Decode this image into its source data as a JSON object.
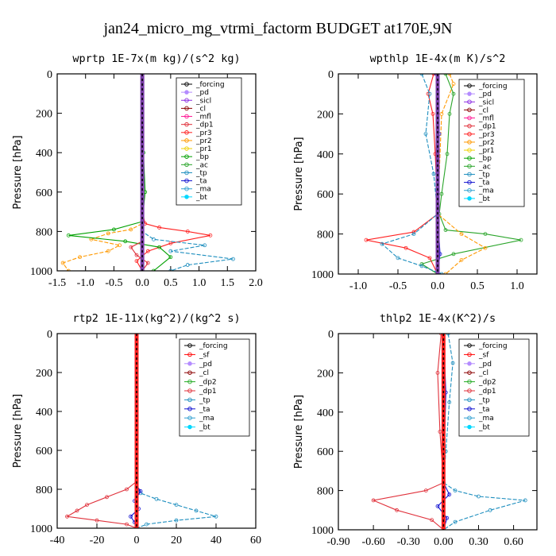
{
  "figure_title": "jan24_micro_mg_vtrmi_factorm  BUDGET at170E,9N",
  "colors": {
    "_forcing": "#000000",
    "_pd": "#b48cff",
    "_sicl": "#8a2be2",
    "_cl": "#8b0000",
    "_mfl": "#ff1493",
    "_dp1": "#e0303a",
    "_pr3": "#ff2020",
    "_pr2": "#ff9900",
    "_pr1": "#f0d000",
    "_bp": "#00a000",
    "_ac": "#2aa52a",
    "_tp": "#1f8fbf",
    "_ta": "#1010d0",
    "_ma": "#30a0d0",
    "_bt": "#00d8ff",
    "_sf": "#ff0000",
    "_dp2": "#22aa22",
    "fat_forcing": "#ff2020"
  },
  "chart_data": [
    {
      "type": "line",
      "title": "wprtp  1E-7x(m kg)/(s^2 kg)",
      "ylabel": "Pressure [hPa]",
      "xlabel": "",
      "xlim": [
        -1.5,
        2.0
      ],
      "ylim": [
        1000,
        0
      ],
      "xticks": [
        "-1.5",
        "-1.0",
        "-0.5",
        "0.0",
        "0.5",
        "1.0",
        "1.5",
        "2.0"
      ],
      "xtick_values": [
        -1.5,
        -1.0,
        -0.5,
        0.0,
        0.5,
        1.0,
        1.5,
        2.0
      ],
      "yticks": [
        "0",
        "200",
        "400",
        "600",
        "800",
        "1000"
      ],
      "ytick_values": [
        0,
        200,
        400,
        600,
        800,
        1000
      ],
      "legend": [
        "_forcing",
        "_pd",
        "_sicl",
        "_cl",
        "_mfl",
        "_dp1",
        "_pr3",
        "_pr2",
        "_pr1",
        "_bp",
        "_ac",
        "_tp",
        "_ta",
        "_ma",
        "_bt"
      ],
      "legend_position": "top-right",
      "series": [
        {
          "name": "_pr3",
          "x": [
            0,
            0,
            0.05,
            0.3,
            0.8,
            1.2,
            0.5,
            0.1,
            -0.1,
            0
          ],
          "y": [
            0,
            700,
            760,
            780,
            800,
            820,
            860,
            900,
            950,
            1000
          ]
        },
        {
          "name": "_pr2",
          "x": [
            0,
            0,
            -0.2,
            -0.6,
            -0.9,
            -0.4,
            -0.6,
            -1.1,
            -1.4,
            -1.3
          ],
          "y": [
            0,
            760,
            790,
            810,
            840,
            870,
            900,
            930,
            960,
            1000
          ]
        },
        {
          "name": "_bp",
          "x": [
            0,
            0.02,
            0.05,
            0,
            -0.5,
            -1.3,
            -0.3,
            0.3,
            0.5,
            0.2
          ],
          "y": [
            0,
            400,
            600,
            750,
            790,
            820,
            850,
            880,
            930,
            1000
          ]
        },
        {
          "name": "_tp",
          "x": [
            0,
            0,
            0.2,
            1.1,
            0.5,
            1.6,
            0.8,
            0.5
          ],
          "y": [
            0,
            800,
            840,
            870,
            900,
            940,
            970,
            1000
          ]
        },
        {
          "name": "_dp1",
          "x": [
            0,
            0,
            -0.2,
            -0.1,
            0.1,
            0
          ],
          "y": [
            0,
            850,
            880,
            920,
            960,
            1000
          ]
        }
      ],
      "forcing_x": 0
    },
    {
      "type": "line",
      "title": "wpthlp  1E-4x(m K)/s^2",
      "ylabel": "Pressure [hPa]",
      "xlabel": "",
      "xlim": [
        -1.25,
        1.25
      ],
      "ylim": [
        1000,
        0
      ],
      "xticks": [
        "-1.0",
        "-0.5",
        "0.0",
        "0.5",
        "1.0"
      ],
      "xtick_values": [
        -1.0,
        -0.5,
        0.0,
        0.5,
        1.0
      ],
      "yticks": [
        "0",
        "200",
        "400",
        "600",
        "800",
        "1000"
      ],
      "ytick_values": [
        0,
        200,
        400,
        600,
        800,
        1000
      ],
      "legend": [
        "_forcing",
        "_pd",
        "_sicl",
        "_cl",
        "_mfl",
        "_dp1",
        "_pr3",
        "_pr2",
        "_pr1",
        "_bp",
        "_ac",
        "_tp",
        "_ta",
        "_ma",
        "_bt"
      ],
      "legend_position": "top-right",
      "series": [
        {
          "name": "_ac",
          "x": [
            0.1,
            0.2,
            0.15,
            0.12,
            0.05,
            0.02,
            0.1,
            0.6,
            1.05,
            0.2,
            -0.2,
            0
          ],
          "y": [
            0,
            100,
            200,
            400,
            600,
            700,
            780,
            800,
            830,
            900,
            950,
            1000
          ]
        },
        {
          "name": "_pr3",
          "x": [
            -0.05,
            -0.12,
            -0.06,
            -0.03,
            0,
            -0.3,
            -0.9,
            -0.4,
            -0.1,
            0
          ],
          "y": [
            0,
            100,
            200,
            400,
            700,
            790,
            830,
            870,
            920,
            1000
          ]
        },
        {
          "name": "_pr2",
          "x": [
            0.15,
            0.2,
            0.05,
            0,
            0.3,
            0.6,
            0.3,
            0.1
          ],
          "y": [
            0,
            50,
            200,
            700,
            800,
            870,
            930,
            1000
          ]
        },
        {
          "name": "_tp",
          "x": [
            -0.2,
            -0.1,
            -0.15,
            -0.05,
            0,
            -0.3,
            -0.7,
            -0.5,
            -0.2,
            0.05
          ],
          "y": [
            0,
            100,
            300,
            500,
            700,
            800,
            850,
            920,
            960,
            1000
          ]
        },
        {
          "name": "_ta",
          "x": [
            -0.02,
            0.02,
            0,
            0.03,
            0
          ],
          "y": [
            0,
            300,
            700,
            900,
            1000
          ]
        }
      ],
      "forcing_x": 0
    },
    {
      "type": "line",
      "title": "rtp2  1E-11x(kg^2)/(kg^2 s)",
      "ylabel": "Pressure [hPa]",
      "xlabel": "",
      "xlim": [
        -40,
        60
      ],
      "ylim": [
        1000,
        0
      ],
      "xticks": [
        "-40",
        "-20",
        "0",
        "20",
        "40",
        "60"
      ],
      "xtick_values": [
        -40,
        -20,
        0,
        20,
        40,
        60
      ],
      "yticks": [
        "0",
        "200",
        "400",
        "600",
        "800",
        "1000"
      ],
      "ytick_values": [
        0,
        200,
        400,
        600,
        800,
        1000
      ],
      "legend": [
        "_forcing",
        "_sf",
        "_pd",
        "_cl",
        "_dp2",
        "_dp1",
        "_tp",
        "_ta",
        "_ma",
        "_bt"
      ],
      "legend_position": "top-right",
      "series": [
        {
          "name": "_dp1",
          "x": [
            0,
            0,
            -5,
            -15,
            -25,
            -30,
            -35,
            -20,
            -5,
            0
          ],
          "y": [
            0,
            760,
            800,
            840,
            880,
            910,
            940,
            960,
            980,
            1000
          ]
        },
        {
          "name": "_tp",
          "x": [
            0,
            0,
            2,
            10,
            20,
            30,
            40,
            20,
            5,
            0
          ],
          "y": [
            0,
            780,
            820,
            850,
            880,
            910,
            940,
            960,
            980,
            1000
          ]
        },
        {
          "name": "_ta",
          "x": [
            0,
            0,
            2,
            -1,
            1,
            -3,
            -1,
            0
          ],
          "y": [
            0,
            780,
            810,
            860,
            900,
            940,
            970,
            1000
          ]
        }
      ],
      "forcing_x": 0
    },
    {
      "type": "line",
      "title": "thlp2  1E-4x(K^2)/s",
      "ylabel": "Pressure [hPa]",
      "xlabel": "",
      "xlim": [
        -0.9,
        0.8
      ],
      "ylim": [
        1000,
        0
      ],
      "xticks": [
        "-0.90",
        "-0.60",
        "-0.30",
        "0.00",
        "0.30",
        "0.60"
      ],
      "xtick_values": [
        -0.9,
        -0.6,
        -0.3,
        0.0,
        0.3,
        0.6
      ],
      "yticks": [
        "0",
        "200",
        "400",
        "600",
        "800",
        "1000"
      ],
      "ytick_values": [
        0,
        200,
        400,
        600,
        800,
        1000
      ],
      "legend": [
        "_forcing",
        "_sf",
        "_pd",
        "_cl",
        "_dp2",
        "_dp1",
        "_tp",
        "_ta",
        "_ma",
        "_bt"
      ],
      "legend_position": "top-right",
      "series": [
        {
          "name": "_dp1",
          "x": [
            -0.02,
            -0.05,
            -0.03,
            0,
            -0.15,
            -0.6,
            -0.4,
            -0.1,
            0
          ],
          "y": [
            0,
            200,
            500,
            760,
            800,
            850,
            900,
            950,
            1000
          ]
        },
        {
          "name": "_tp",
          "x": [
            0.04,
            0.08,
            0.05,
            0.02,
            0,
            0.1,
            0.3,
            0.7,
            0.4,
            0.1,
            0
          ],
          "y": [
            0,
            150,
            350,
            600,
            760,
            800,
            830,
            850,
            900,
            960,
            1000
          ]
        },
        {
          "name": "_ta",
          "x": [
            0,
            0.02,
            0,
            0.05,
            -0.05,
            0.03,
            0
          ],
          "y": [
            0,
            300,
            760,
            820,
            880,
            940,
            1000
          ]
        }
      ],
      "forcing_x": 0
    }
  ]
}
